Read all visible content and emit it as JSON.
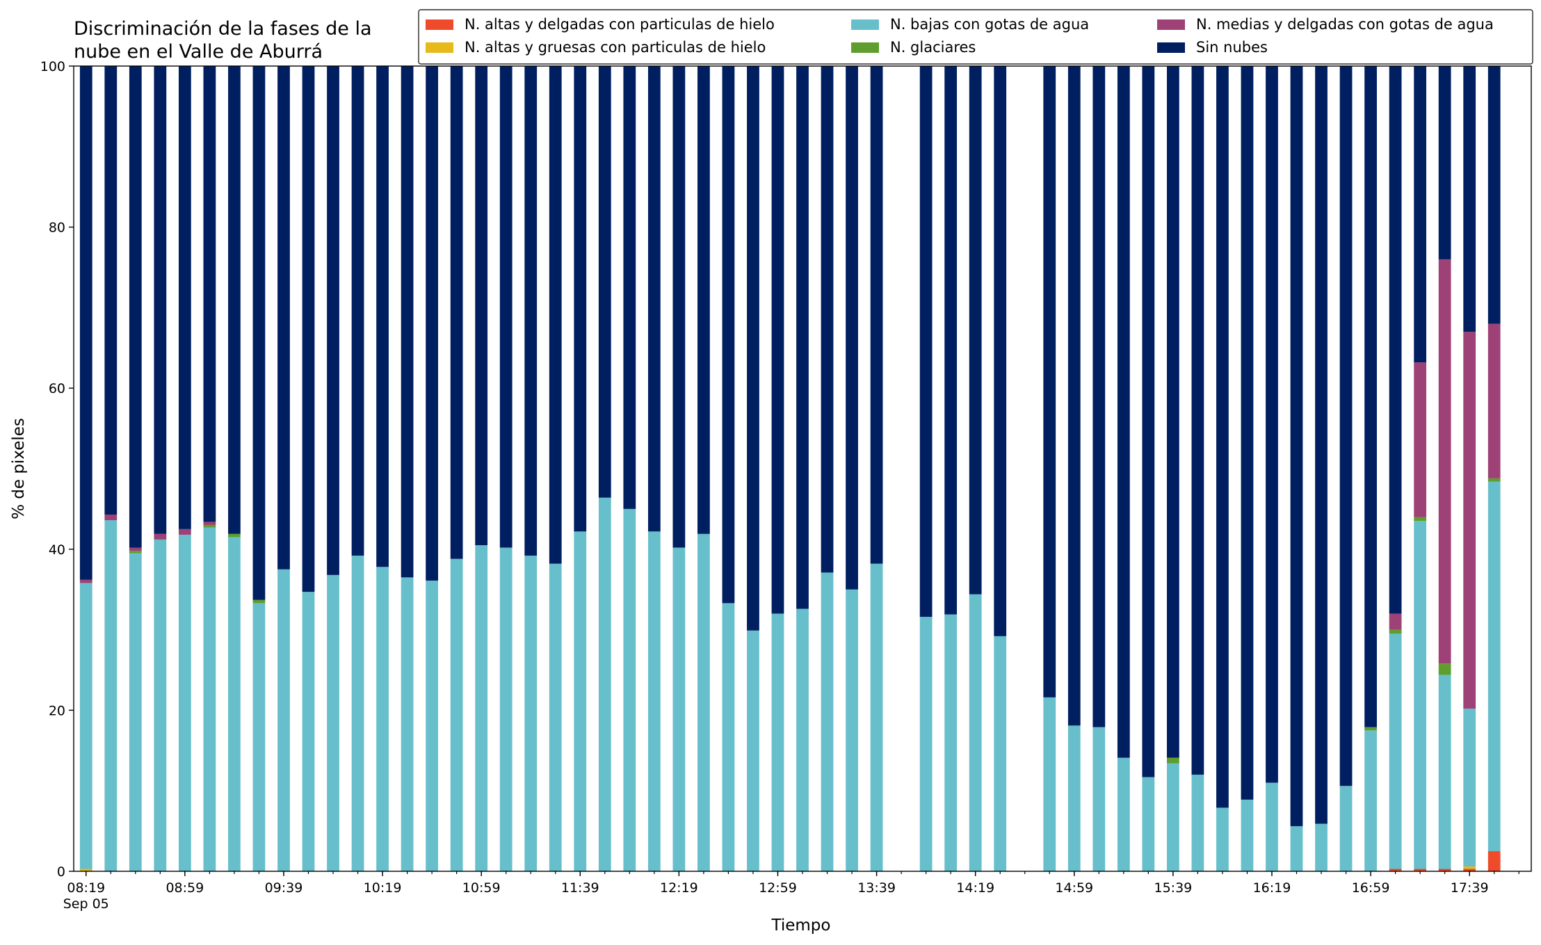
{
  "chart_data": {
    "type": "stacked_bar",
    "title_lines": [
      "Discriminación de la fases de la",
      "nube en el Valle de Aburrá"
    ],
    "xlabel": "Tiempo",
    "ylabel": "% de pixeles",
    "x_date_label": "Sep 05",
    "x": [
      "08:19",
      "08:29",
      "08:39",
      "08:49",
      "08:59",
      "09:09",
      "09:19",
      "09:29",
      "09:39",
      "09:49",
      "09:59",
      "10:09",
      "10:19",
      "10:29",
      "10:39",
      "10:49",
      "10:59",
      "11:09",
      "11:19",
      "11:29",
      "11:39",
      "11:49",
      "11:59",
      "12:09",
      "12:19",
      "12:29",
      "12:39",
      "12:49",
      "12:59",
      "13:09",
      "13:19",
      "13:29",
      "13:39",
      "13:59",
      "14:09",
      "14:19",
      "14:29",
      "14:49",
      "14:59",
      "15:09",
      "15:19",
      "15:29",
      "15:39",
      "15:49",
      "15:59",
      "16:09",
      "16:19",
      "16:29",
      "16:39",
      "16:49",
      "16:59",
      "17:09",
      "17:19",
      "17:29",
      "17:39",
      "17:49"
    ],
    "xlim": [
      "08:14",
      "18:04"
    ],
    "xticks": [
      "08:19",
      "08:59",
      "09:39",
      "10:19",
      "10:59",
      "11:39",
      "12:19",
      "12:59",
      "13:39",
      "14:19",
      "14:59",
      "15:39",
      "16:19",
      "16:59",
      "17:39"
    ],
    "ylim": [
      0,
      100
    ],
    "yticks": [
      0,
      20,
      40,
      60,
      80,
      100
    ],
    "legend": "upper right",
    "series": [
      {
        "name": "N. altas y delgadas con particulas de hielo",
        "color": "#ef4b2b",
        "values": [
          0,
          0,
          0,
          0,
          0,
          0,
          0,
          0,
          0,
          0,
          0,
          0,
          0,
          0,
          0,
          0,
          0,
          0,
          0,
          0,
          0,
          0,
          0,
          0,
          0,
          0,
          0,
          0,
          0,
          0,
          0,
          0,
          0,
          0,
          0,
          0,
          0,
          0,
          0,
          0,
          0,
          0,
          0,
          0,
          0,
          0,
          0,
          0,
          0,
          0,
          0,
          0.3,
          0.3,
          0.3,
          0.3,
          2.5
        ]
      },
      {
        "name": "N. altas y gruesas con particulas de hielo",
        "color": "#e7b91a",
        "values": [
          0.3,
          0,
          0,
          0,
          0,
          0,
          0,
          0,
          0,
          0,
          0,
          0,
          0,
          0,
          0,
          0,
          0,
          0,
          0,
          0,
          0,
          0,
          0,
          0,
          0,
          0,
          0,
          0,
          0,
          0,
          0,
          0,
          0,
          0,
          0,
          0,
          0,
          0,
          0,
          0,
          0,
          0,
          0,
          0,
          0,
          0,
          0,
          0,
          0,
          0,
          0,
          0,
          0,
          0,
          0.3,
          0
        ]
      },
      {
        "name": "N. bajas con gotas de agua",
        "color": "#67bfcb",
        "values": [
          35.5,
          43.6,
          39.5,
          41.2,
          41.8,
          42.7,
          41.5,
          33.3,
          37.5,
          34.7,
          36.8,
          39.2,
          37.8,
          36.5,
          36.1,
          38.8,
          40.5,
          40.2,
          39.2,
          38.2,
          42.2,
          46.4,
          45.0,
          42.2,
          40.2,
          41.9,
          33.3,
          29.9,
          32.0,
          32.6,
          37.1,
          35.0,
          38.2,
          31.6,
          31.9,
          34.4,
          29.2,
          21.6,
          18.1,
          17.9,
          14.1,
          11.7,
          13.4,
          12.0,
          7.9,
          8.9,
          11.0,
          5.6,
          5.9,
          10.6,
          17.5,
          29.2,
          43.2,
          24.1,
          19.6,
          45.9
        ]
      },
      {
        "name": "N. glaciares",
        "color": "#5f9e2e",
        "values": [
          0,
          0,
          0.3,
          0,
          0,
          0.3,
          0.4,
          0.4,
          0,
          0,
          0,
          0,
          0,
          0,
          0,
          0,
          0,
          0,
          0,
          0,
          0,
          0,
          0,
          0,
          0,
          0,
          0,
          0,
          0,
          0,
          0,
          0,
          0,
          0,
          0,
          0,
          0,
          0,
          0,
          0,
          0,
          0,
          0.7,
          0,
          0,
          0,
          0,
          0,
          0,
          0,
          0.4,
          0.5,
          0.5,
          1.4,
          0,
          0.4
        ]
      },
      {
        "name": "N. medias y delgadas con gotas de agua",
        "color": "#9e4176",
        "values": [
          0.4,
          0.7,
          0.4,
          0.7,
          0.7,
          0.4,
          0,
          0,
          0,
          0,
          0,
          0,
          0,
          0,
          0,
          0,
          0,
          0,
          0,
          0,
          0,
          0,
          0,
          0,
          0,
          0,
          0,
          0,
          0,
          0,
          0,
          0,
          0,
          0,
          0,
          0,
          0,
          0,
          0,
          0,
          0,
          0,
          0,
          0,
          0,
          0,
          0,
          0,
          0,
          0,
          0,
          2.0,
          19.2,
          50.2,
          46.8,
          19.2
        ]
      },
      {
        "name": "Sin nubes",
        "color": "#001f60",
        "values": [
          63.8,
          55.7,
          59.8,
          58.1,
          57.5,
          56.6,
          58.1,
          66.3,
          62.5,
          65.3,
          63.2,
          60.8,
          62.2,
          63.5,
          63.9,
          61.2,
          59.5,
          59.8,
          60.8,
          61.8,
          57.8,
          53.6,
          55.0,
          57.8,
          59.8,
          58.1,
          66.7,
          70.1,
          68.0,
          67.4,
          62.9,
          65.0,
          61.8,
          68.4,
          68.1,
          65.6,
          70.8,
          78.4,
          81.9,
          82.1,
          85.9,
          88.3,
          85.9,
          88.0,
          92.1,
          91.1,
          89.0,
          94.4,
          94.1,
          89.4,
          82.1,
          68.0,
          36.8,
          24.0,
          33.0,
          32.0
        ]
      }
    ]
  }
}
